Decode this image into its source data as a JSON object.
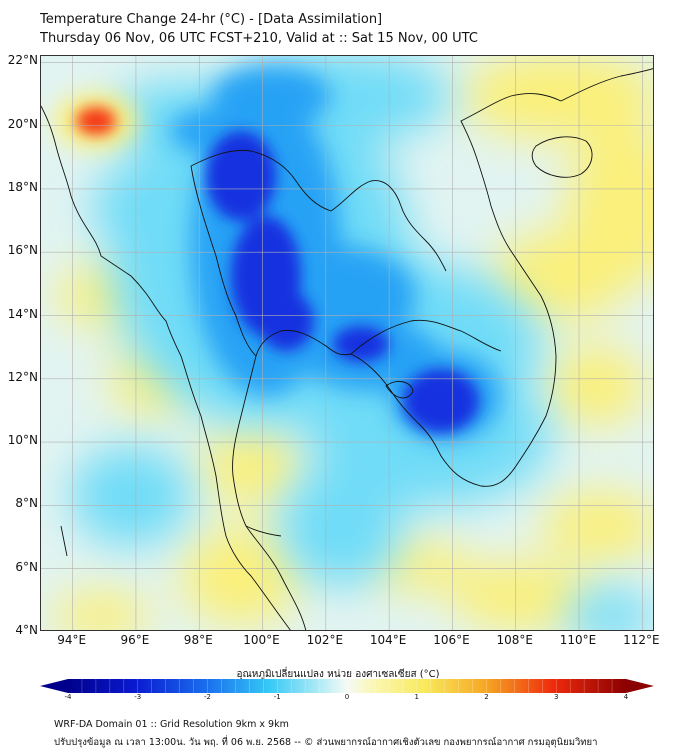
{
  "title_line1": "Temperature Change 24-hr (°C) - [Data Assimilation]",
  "title_line2": "Thursday 06 Nov, 06 UTC FCST+210, Valid at :: Sat 15 Nov, 00 UTC",
  "lat_labels": [
    "22°N",
    "20°N",
    "18°N",
    "16°N",
    "14°N",
    "12°N",
    "10°N",
    "8°N",
    "6°N",
    "4°N"
  ],
  "lon_labels": [
    "94°E",
    "96°E",
    "98°E",
    "100°E",
    "102°E",
    "104°E",
    "106°E",
    "108°E",
    "110°E",
    "112°E"
  ],
  "colorbar": {
    "title": "อุณหภูมิเปลี่ยนแปลง หน่วย องศาเซลเซียส (°C)",
    "ticks": [
      "-4",
      "-3",
      "-2",
      "-1",
      "0",
      "1",
      "2",
      "3",
      "4"
    ],
    "range": [
      -4,
      4
    ],
    "low_color": "#00008b",
    "high_color": "#8b0000"
  },
  "footer_line1": "WRF-DA Domain 01 :: Grid Resolution 9km x 9km",
  "footer_line2": "ปรับปรุงข้อมูล ณ เวลา 13:00น. วัน พฤ. ที่ 06 พ.ย. 2568 -- © ส่วนพยากรณ์อากาศเชิงตัวเลข กองพยากรณ์อากาศ กรมอุตุนิยมวิทยา",
  "map_data": {
    "lat_range": [
      4,
      22.2
    ],
    "lon_range": [
      93,
      112.4
    ],
    "field_colors": {
      "background": "#e2f4f2",
      "cold_strong": "#1230e0",
      "cold": "#25a2f5",
      "cool": "#6fdcf7",
      "warm": "#fbf07a",
      "hot": "#f43a16"
    },
    "anomalies": [
      {
        "lon": 94.6,
        "lat": 20.2,
        "value": 1.8
      },
      {
        "lon": 99.5,
        "lat": 18.5,
        "value": -2.6
      },
      {
        "lon": 100.0,
        "lat": 14.5,
        "value": -2.5
      },
      {
        "lon": 103.5,
        "lat": 12.8,
        "value": -2.0
      },
      {
        "lon": 105.4,
        "lat": 11.2,
        "value": -2.4
      },
      {
        "lon": 101.0,
        "lat": 21.2,
        "value": -1.8
      },
      {
        "lon": 109.0,
        "lat": 17.0,
        "value": 0.6
      },
      {
        "lon": 109.5,
        "lat": 21.0,
        "value": 0.5
      },
      {
        "lon": 98.8,
        "lat": 5.8,
        "value": 0.8
      },
      {
        "lon": 106.5,
        "lat": 5.5,
        "value": 0.5
      }
    ]
  }
}
